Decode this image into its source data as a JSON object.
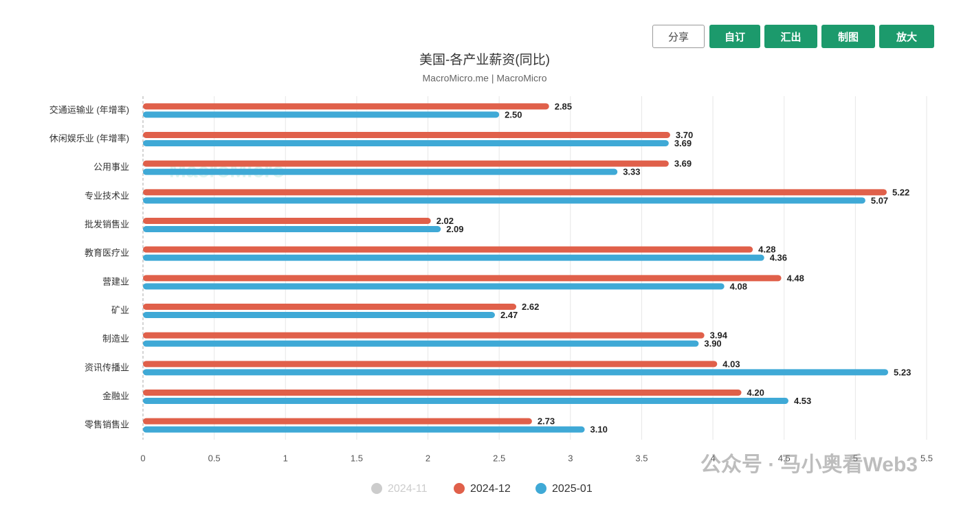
{
  "toolbar": [
    "分享",
    "自订",
    "汇出",
    "制图",
    "放大"
  ],
  "watermarks": [
    "MacroMicro",
    "公众号 · 马小奥看Web3"
  ],
  "chart_data": {
    "type": "hbar",
    "title": "美国-各产业薪资(同比)",
    "subtitle": "MacroMicro.me | MacroMicro",
    "categories": [
      "交通运输业 (年增率)",
      "休闲娱乐业 (年增率)",
      "公用事业",
      "专业技术业",
      "批发销售业",
      "教育医疗业",
      "营建业",
      "矿业",
      "制造业",
      "资讯传播业",
      "金融业",
      "零售销售业"
    ],
    "series": [
      {
        "name": "2024-11",
        "color": "#cccccc",
        "hidden": true,
        "values": [
          null,
          null,
          null,
          null,
          null,
          null,
          null,
          null,
          null,
          null,
          null,
          null
        ]
      },
      {
        "name": "2024-12",
        "color": "#e0604a",
        "values": [
          2.85,
          3.7,
          3.69,
          5.22,
          2.02,
          4.28,
          4.48,
          2.62,
          3.94,
          4.03,
          4.2,
          2.73
        ],
        "value_labels": [
          "2.85",
          "3.70",
          "3.69",
          "5.22",
          "2.02",
          "4.28",
          "4.48",
          "2.62",
          "3.94",
          "4.03",
          "4.20",
          "2.73"
        ]
      },
      {
        "name": "2025-01",
        "color": "#3fa9d6",
        "values": [
          2.5,
          3.69,
          3.33,
          5.07,
          2.09,
          4.36,
          4.08,
          2.47,
          3.9,
          5.23,
          4.53,
          3.1
        ],
        "value_labels": [
          "2.50",
          "3.69",
          "3.33",
          "5.07",
          "2.09",
          "4.36",
          "4.08",
          "2.47",
          "3.90",
          "5.23",
          "4.53",
          "3.10"
        ]
      }
    ],
    "xlim": [
      0,
      5.5
    ],
    "xticks": [
      0,
      0.5,
      1,
      1.5,
      2,
      2.5,
      3,
      3.5,
      4,
      4.5,
      5,
      5.5
    ],
    "grid": true
  }
}
